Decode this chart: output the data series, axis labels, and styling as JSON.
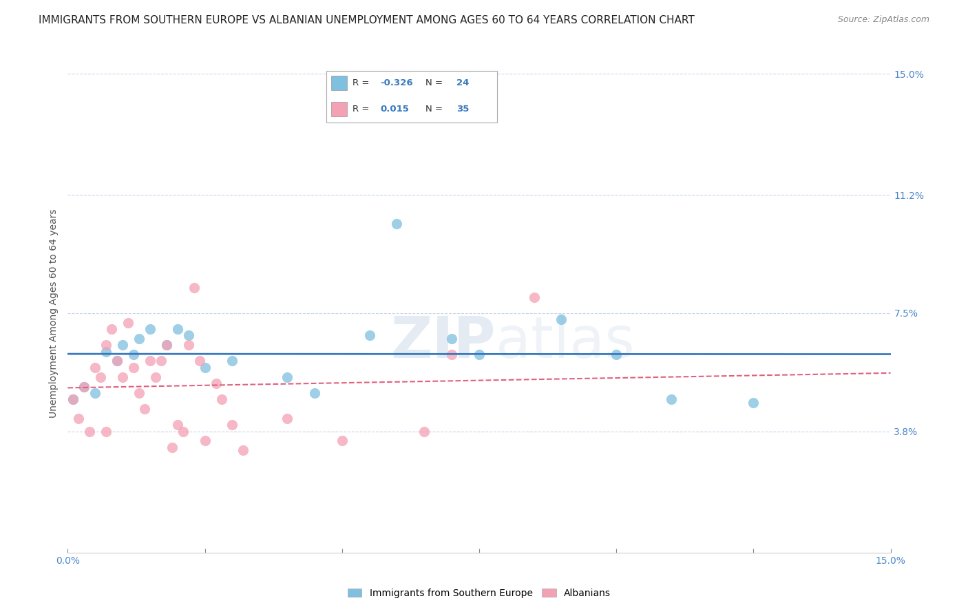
{
  "title": "IMMIGRANTS FROM SOUTHERN EUROPE VS ALBANIAN UNEMPLOYMENT AMONG AGES 60 TO 64 YEARS CORRELATION CHART",
  "source": "Source: ZipAtlas.com",
  "ylabel": "Unemployment Among Ages 60 to 64 years",
  "xlim": [
    0.0,
    0.15
  ],
  "ylim": [
    0.0,
    0.15
  ],
  "yticks_right": [
    0.038,
    0.075,
    0.112,
    0.15
  ],
  "ytick_labels_right": [
    "3.8%",
    "7.5%",
    "11.2%",
    "15.0%"
  ],
  "xticks": [
    0.0,
    0.025,
    0.05,
    0.075,
    0.1,
    0.125,
    0.15
  ],
  "xtick_labels": [
    "0.0%",
    "",
    "",
    "",
    "",
    "",
    "15.0%"
  ],
  "blue_color": "#7fbfdf",
  "pink_color": "#f4a0b5",
  "trend_blue": "#3a7abf",
  "trend_pink": "#e06080",
  "legend_R_blue": "-0.326",
  "legend_N_blue": "24",
  "legend_R_pink": "0.015",
  "legend_N_pink": "35",
  "legend_label_blue": "Immigrants from Southern Europe",
  "legend_label_pink": "Albanians",
  "watermark": "ZIPatlas",
  "blue_points": [
    [
      0.001,
      0.048
    ],
    [
      0.003,
      0.052
    ],
    [
      0.005,
      0.05
    ],
    [
      0.007,
      0.063
    ],
    [
      0.009,
      0.06
    ],
    [
      0.01,
      0.065
    ],
    [
      0.012,
      0.062
    ],
    [
      0.013,
      0.067
    ],
    [
      0.015,
      0.07
    ],
    [
      0.018,
      0.065
    ],
    [
      0.02,
      0.07
    ],
    [
      0.022,
      0.068
    ],
    [
      0.025,
      0.058
    ],
    [
      0.03,
      0.06
    ],
    [
      0.04,
      0.055
    ],
    [
      0.045,
      0.05
    ],
    [
      0.055,
      0.068
    ],
    [
      0.06,
      0.103
    ],
    [
      0.07,
      0.067
    ],
    [
      0.075,
      0.062
    ],
    [
      0.09,
      0.073
    ],
    [
      0.11,
      0.048
    ],
    [
      0.125,
      0.047
    ],
    [
      0.1,
      0.062
    ]
  ],
  "pink_points": [
    [
      0.001,
      0.048
    ],
    [
      0.002,
      0.042
    ],
    [
      0.003,
      0.052
    ],
    [
      0.004,
      0.038
    ],
    [
      0.005,
      0.058
    ],
    [
      0.006,
      0.055
    ],
    [
      0.007,
      0.065
    ],
    [
      0.007,
      0.038
    ],
    [
      0.008,
      0.07
    ],
    [
      0.009,
      0.06
    ],
    [
      0.01,
      0.055
    ],
    [
      0.011,
      0.072
    ],
    [
      0.012,
      0.058
    ],
    [
      0.013,
      0.05
    ],
    [
      0.014,
      0.045
    ],
    [
      0.015,
      0.06
    ],
    [
      0.016,
      0.055
    ],
    [
      0.017,
      0.06
    ],
    [
      0.018,
      0.065
    ],
    [
      0.019,
      0.033
    ],
    [
      0.02,
      0.04
    ],
    [
      0.021,
      0.038
    ],
    [
      0.022,
      0.065
    ],
    [
      0.023,
      0.083
    ],
    [
      0.024,
      0.06
    ],
    [
      0.025,
      0.035
    ],
    [
      0.027,
      0.053
    ],
    [
      0.028,
      0.048
    ],
    [
      0.03,
      0.04
    ],
    [
      0.032,
      0.032
    ],
    [
      0.04,
      0.042
    ],
    [
      0.05,
      0.035
    ],
    [
      0.065,
      0.038
    ],
    [
      0.07,
      0.062
    ],
    [
      0.085,
      0.08
    ]
  ],
  "background_color": "#ffffff",
  "grid_color": "#c8d4e8",
  "title_fontsize": 11,
  "axis_label_fontsize": 10,
  "tick_fontsize": 10,
  "point_size": 120
}
